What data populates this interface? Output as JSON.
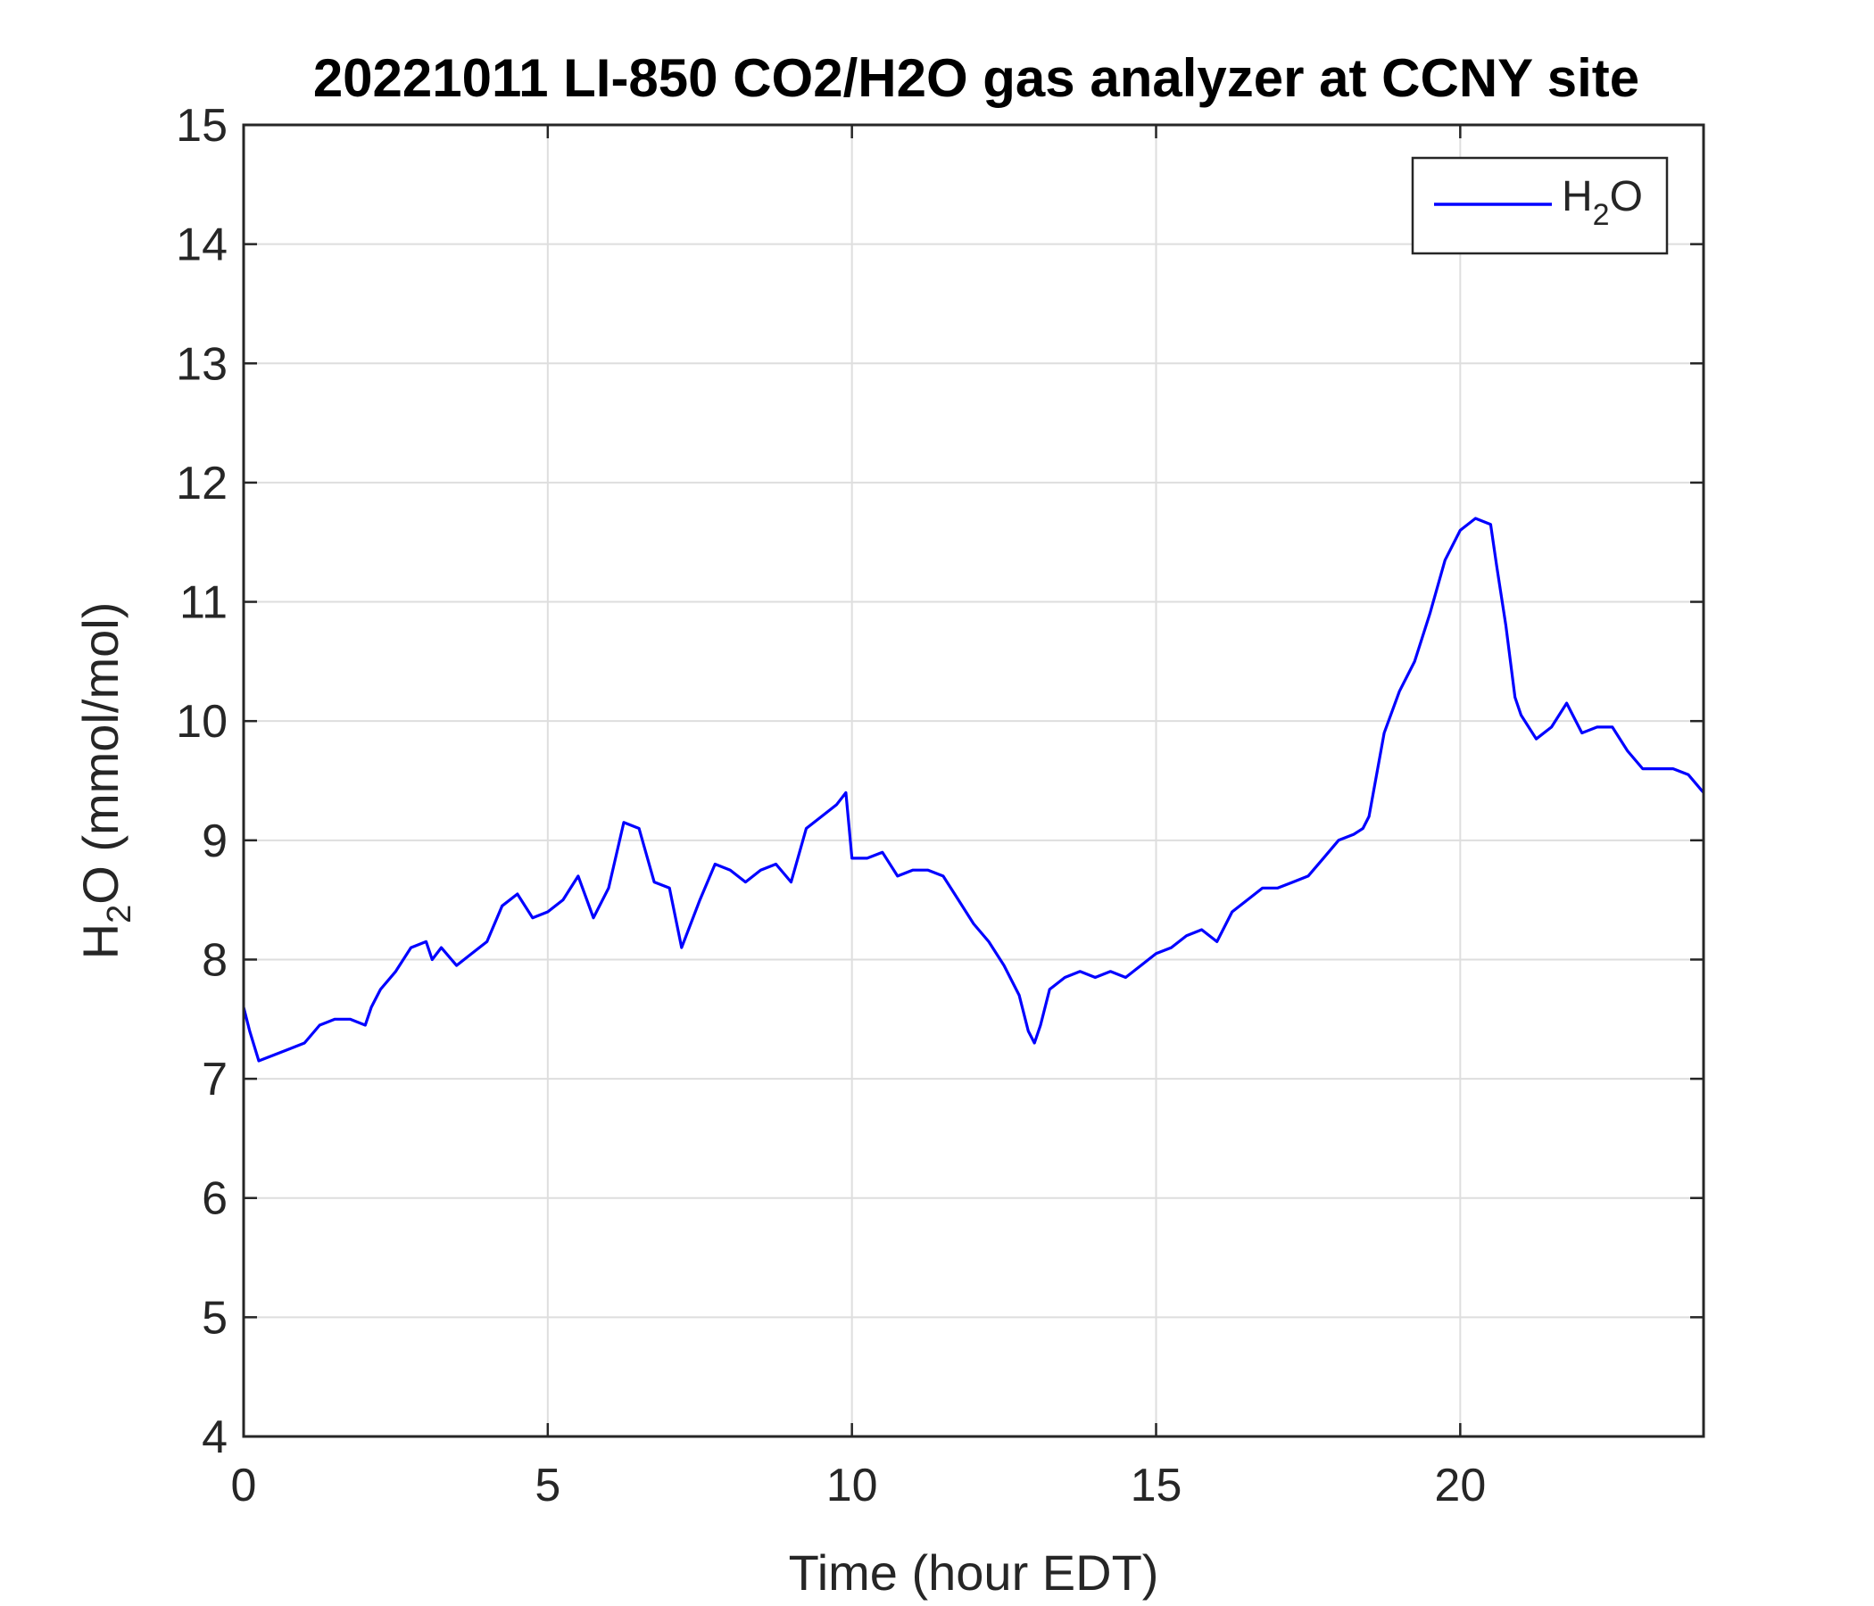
{
  "chart_data": {
    "type": "line",
    "title": "20221011 LI-850 CO2/H2O gas analyzer at CCNY site",
    "xlabel": "Time (hour EDT)",
    "ylabel": {
      "prefix": "H",
      "sub": "2",
      "suffix": "O (mmol/mol)"
    },
    "xlim": [
      0,
      24
    ],
    "ylim": [
      4,
      15
    ],
    "xticks": [
      0,
      5,
      10,
      15,
      20
    ],
    "yticks": [
      4,
      5,
      6,
      7,
      8,
      9,
      10,
      11,
      12,
      13,
      14,
      15
    ],
    "grid": true,
    "legend_position": "top-right",
    "legend": {
      "prefix": "H",
      "sub": "2",
      "suffix": "O"
    },
    "series": [
      {
        "color": "#0000ff",
        "x": [
          0,
          0.1,
          0.25,
          0.5,
          0.75,
          1.0,
          1.25,
          1.5,
          1.75,
          2.0,
          2.1,
          2.25,
          2.5,
          2.75,
          3.0,
          3.1,
          3.25,
          3.5,
          3.75,
          4.0,
          4.25,
          4.5,
          4.75,
          5.0,
          5.25,
          5.5,
          5.75,
          6.0,
          6.25,
          6.5,
          6.75,
          7.0,
          7.2,
          7.5,
          7.75,
          8.0,
          8.25,
          8.5,
          8.75,
          9.0,
          9.25,
          9.5,
          9.75,
          9.9,
          10.0,
          10.25,
          10.5,
          10.75,
          11.0,
          11.25,
          11.5,
          11.75,
          12.0,
          12.25,
          12.5,
          12.75,
          12.9,
          13.0,
          13.1,
          13.25,
          13.5,
          13.75,
          14.0,
          14.25,
          14.5,
          14.75,
          15.0,
          15.25,
          15.5,
          15.75,
          16.0,
          16.25,
          16.5,
          16.75,
          17.0,
          17.25,
          17.5,
          17.75,
          18.0,
          18.25,
          18.4,
          18.5,
          18.75,
          19.0,
          19.25,
          19.5,
          19.75,
          20.0,
          20.25,
          20.5,
          20.6,
          20.75,
          20.9,
          21.0,
          21.25,
          21.5,
          21.75,
          22.0,
          22.25,
          22.5,
          22.75,
          23.0,
          23.25,
          23.5,
          23.75,
          24.0
        ],
        "y": [
          7.6,
          7.4,
          7.15,
          7.2,
          7.25,
          7.3,
          7.45,
          7.5,
          7.5,
          7.45,
          7.6,
          7.75,
          7.9,
          8.1,
          8.15,
          8.0,
          8.1,
          7.95,
          8.05,
          8.15,
          8.45,
          8.55,
          8.35,
          8.4,
          8.5,
          8.7,
          8.35,
          8.6,
          9.15,
          9.1,
          8.65,
          8.6,
          8.1,
          8.5,
          8.8,
          8.75,
          8.65,
          8.75,
          8.8,
          8.65,
          9.1,
          9.2,
          9.3,
          9.4,
          8.85,
          8.85,
          8.9,
          8.7,
          8.75,
          8.75,
          8.7,
          8.5,
          8.3,
          8.15,
          7.95,
          7.7,
          7.4,
          7.3,
          7.45,
          7.75,
          7.85,
          7.9,
          7.85,
          7.9,
          7.85,
          7.95,
          8.05,
          8.1,
          8.2,
          8.25,
          8.15,
          8.4,
          8.5,
          8.6,
          8.6,
          8.65,
          8.7,
          8.85,
          9.0,
          9.05,
          9.1,
          9.2,
          9.9,
          10.25,
          10.5,
          10.9,
          11.35,
          11.6,
          11.7,
          11.65,
          11.3,
          10.8,
          10.2,
          10.05,
          9.85,
          9.95,
          10.15,
          9.9,
          9.95,
          9.95,
          9.75,
          9.6,
          9.6,
          9.6,
          9.55,
          9.4
        ]
      }
    ]
  }
}
